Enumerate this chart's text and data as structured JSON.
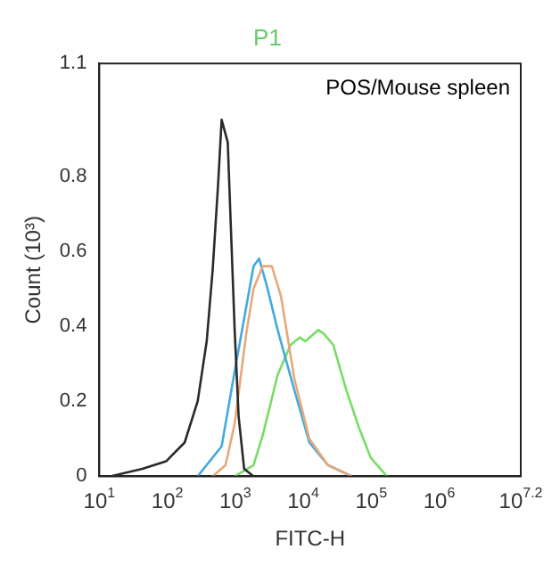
{
  "chart_data": {
    "type": "line",
    "title": "P1",
    "xlabel": "FITC-H",
    "ylabel": "Count (10³)",
    "log": "x",
    "grid": false,
    "legend": false,
    "marker": "none",
    "line_style": "solid",
    "xlim": [
      10,
      15848932
    ],
    "xticks": [
      {
        "value": 10,
        "label": "10$^{1}$"
      },
      {
        "value": 100,
        "label": "10$^{2}$"
      },
      {
        "value": 1000,
        "label": "10$^{3}$"
      },
      {
        "value": 10000,
        "label": "10$^{4}$"
      },
      {
        "value": 100000,
        "label": "10$^{5}$"
      },
      {
        "value": 1000000,
        "label": "10$^{6}$"
      },
      {
        "value": 15848932,
        "label": "10$^{7.2}$"
      }
    ],
    "ylim": [
      0,
      1.1
    ],
    "yticks": [
      {
        "value": 0,
        "label": "0"
      },
      {
        "value": 0.2,
        "label": "0.2"
      },
      {
        "value": 0.4,
        "label": "0.4"
      },
      {
        "value": 0.6,
        "label": "0.6"
      },
      {
        "value": 0.8,
        "label": "0.8"
      },
      {
        "value": 1.1,
        "label": "1.1"
      }
    ],
    "annotations": [
      "POS/Mouse spleen"
    ],
    "series": [
      {
        "color": "#2a2a2a",
        "x": [
          14.5,
          43,
          96,
          180,
          280,
          380,
          465,
          560,
          630,
          775,
          875,
          980,
          1120,
          1350,
          1860
        ],
        "values": [
          0,
          0.02,
          0.04,
          0.09,
          0.2,
          0.36,
          0.55,
          0.78,
          0.95,
          0.89,
          0.63,
          0.39,
          0.16,
          0.02,
          0
        ]
      },
      {
        "color": "#e8a878",
        "x": [
          465,
          720,
          980,
          1450,
          1860,
          2540,
          3450,
          4700,
          7400,
          12300,
          23000,
          52000
        ],
        "values": [
          0,
          0.03,
          0.14,
          0.38,
          0.5,
          0.56,
          0.56,
          0.48,
          0.26,
          0.1,
          0.03,
          0
        ]
      },
      {
        "color": "#44aadd",
        "x": [
          280,
          630,
          980,
          1350,
          1860,
          2240,
          2890,
          4200,
          7400,
          12300,
          23000,
          52000
        ],
        "values": [
          0,
          0.08,
          0.28,
          0.42,
          0.56,
          0.58,
          0.51,
          0.39,
          0.23,
          0.09,
          0.03,
          0
        ]
      },
      {
        "color": "#77dd66",
        "x": [
          980,
          1860,
          2540,
          4200,
          6500,
          8900,
          10800,
          16600,
          20000,
          27700,
          43000,
          66000,
          98000,
          170000
        ],
        "values": [
          0,
          0.03,
          0.11,
          0.27,
          0.35,
          0.37,
          0.36,
          0.39,
          0.38,
          0.35,
          0.23,
          0.13,
          0.05,
          0
        ]
      }
    ]
  }
}
